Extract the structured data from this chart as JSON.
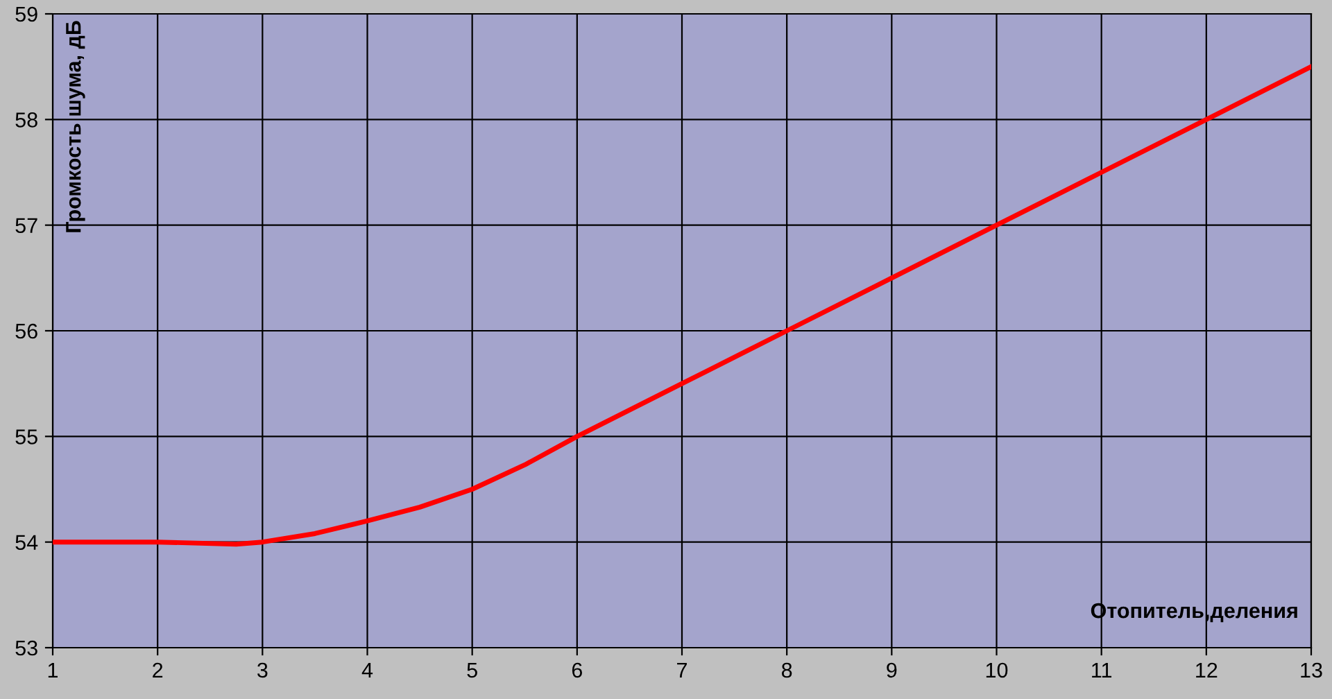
{
  "chart_data": {
    "type": "line",
    "xlabel": "Отопитель,деления",
    "ylabel": "Громкость шума, дБ",
    "x": [
      1,
      2,
      2.75,
      3,
      3.5,
      4,
      4.5,
      5,
      5.5,
      6,
      7,
      8,
      9,
      10,
      11,
      12,
      13
    ],
    "series": [
      {
        "color": "#ff0000",
        "values": [
          54,
          54,
          53.98,
          54,
          54.08,
          54.2,
          54.33,
          54.5,
          54.73,
          55,
          55.5,
          56,
          56.5,
          57,
          57.5,
          58,
          58.5
        ]
      }
    ],
    "xlim": [
      1,
      13
    ],
    "xticks": [
      1,
      2,
      3,
      4,
      5,
      6,
      7,
      8,
      9,
      10,
      11,
      12,
      13
    ],
    "ylim": [
      53,
      59
    ],
    "yticks": [
      53,
      54,
      55,
      56,
      57,
      58,
      59
    ],
    "grid": true,
    "marker": "none",
    "line_style": "solid"
  }
}
